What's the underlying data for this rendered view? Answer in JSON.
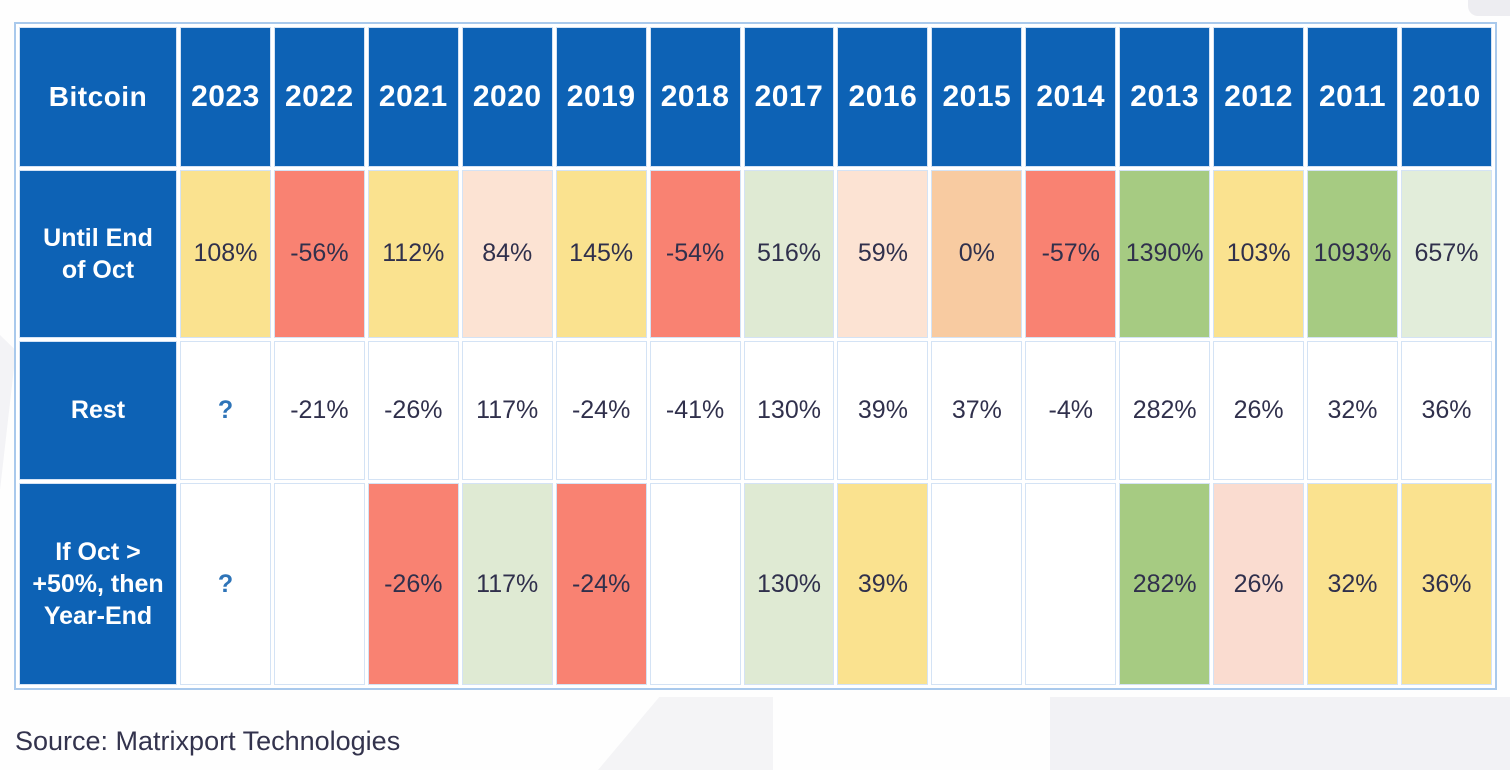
{
  "colors": {
    "header_blue": "#0d62b5",
    "yellow": "#fae28f",
    "red": "#f98272",
    "peach_light": "#fce3d3",
    "peach_medium": "#f8cba1",
    "green_light": "#dfead3",
    "green_medium": "#a6cb82",
    "green_pale": "#e2edda",
    "pink_light": "#fadcd0",
    "white": "#ffffff",
    "value_text": "#30304c",
    "question_text": "#2e74b8",
    "table_border": "#a9c9ec"
  },
  "chart_data": {
    "type": "table",
    "corner_label": "Bitcoin",
    "year_columns": [
      "2023",
      "2022",
      "2021",
      "2020",
      "2019",
      "2018",
      "2017",
      "2016",
      "2015",
      "2014",
      "2013",
      "2012",
      "2011",
      "2010"
    ],
    "rows": [
      {
        "label": "Until End of Oct",
        "cells": [
          {
            "value": "108%",
            "color": "yellow"
          },
          {
            "value": "-56%",
            "color": "red"
          },
          {
            "value": "112%",
            "color": "yellow"
          },
          {
            "value": "84%",
            "color": "peach_light"
          },
          {
            "value": "145%",
            "color": "yellow"
          },
          {
            "value": "-54%",
            "color": "red"
          },
          {
            "value": "516%",
            "color": "green_light"
          },
          {
            "value": "59%",
            "color": "peach_light"
          },
          {
            "value": "0%",
            "color": "peach_medium"
          },
          {
            "value": "-57%",
            "color": "red"
          },
          {
            "value": "1390%",
            "color": "green_medium"
          },
          {
            "value": "103%",
            "color": "yellow"
          },
          {
            "value": "1093%",
            "color": "green_medium"
          },
          {
            "value": "657%",
            "color": "green_pale"
          }
        ]
      },
      {
        "label": "Rest",
        "cells": [
          {
            "value": "?",
            "color": "white"
          },
          {
            "value": "-21%",
            "color": "white"
          },
          {
            "value": "-26%",
            "color": "white"
          },
          {
            "value": "117%",
            "color": "white"
          },
          {
            "value": "-24%",
            "color": "white"
          },
          {
            "value": "-41%",
            "color": "white"
          },
          {
            "value": "130%",
            "color": "white"
          },
          {
            "value": "39%",
            "color": "white"
          },
          {
            "value": "37%",
            "color": "white"
          },
          {
            "value": "-4%",
            "color": "white"
          },
          {
            "value": "282%",
            "color": "white"
          },
          {
            "value": "26%",
            "color": "white"
          },
          {
            "value": "32%",
            "color": "white"
          },
          {
            "value": "36%",
            "color": "white"
          }
        ]
      },
      {
        "label": "If Oct > +50%, then Year-End",
        "cells": [
          {
            "value": "?",
            "color": "white"
          },
          {
            "value": "",
            "color": "white"
          },
          {
            "value": "-26%",
            "color": "red"
          },
          {
            "value": "117%",
            "color": "green_light"
          },
          {
            "value": "-24%",
            "color": "red"
          },
          {
            "value": "",
            "color": "white"
          },
          {
            "value": "130%",
            "color": "green_light"
          },
          {
            "value": "39%",
            "color": "yellow"
          },
          {
            "value": "",
            "color": "white"
          },
          {
            "value": "",
            "color": "white"
          },
          {
            "value": "282%",
            "color": "green_medium"
          },
          {
            "value": "26%",
            "color": "pink_light"
          },
          {
            "value": "32%",
            "color": "yellow"
          },
          {
            "value": "36%",
            "color": "yellow"
          }
        ]
      }
    ],
    "source": "Source: Matrixport Technologies"
  }
}
